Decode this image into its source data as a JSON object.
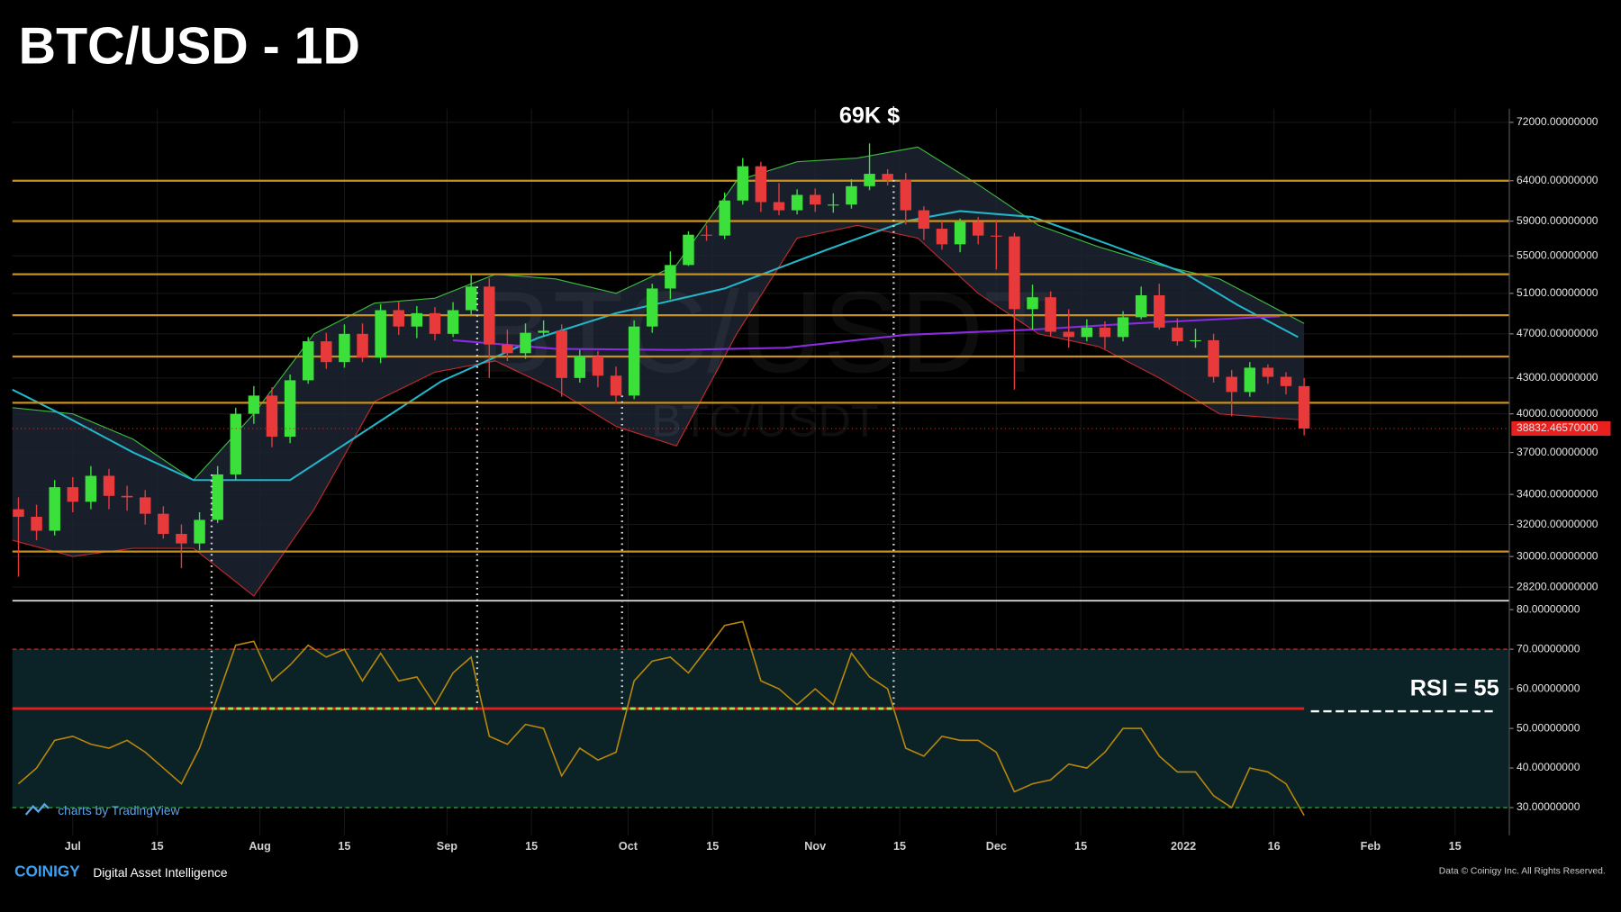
{
  "title": "BTC/USD - 1D",
  "brand": "COINIGY",
  "tagline": "Digital Asset Intelligence",
  "credit": "Data © Coinigy Inc. All Rights Reserved.",
  "tv_credit": "charts by TradingView",
  "watermark": "BTC/USDT",
  "chart_data": [
    {
      "type": "candlestick",
      "annotation": "69K $",
      "log_scale": true,
      "grid": true,
      "xlim": [
        -10,
        238
      ],
      "xticks": [
        {
          "value": 0,
          "label": "Jul"
        },
        {
          "value": 14,
          "label": "15"
        },
        {
          "value": 31,
          "label": "Aug"
        },
        {
          "value": 45,
          "label": "15"
        },
        {
          "value": 62,
          "label": "Sep"
        },
        {
          "value": 76,
          "label": "15"
        },
        {
          "value": 92,
          "label": "Oct"
        },
        {
          "value": 106,
          "label": "15"
        },
        {
          "value": 123,
          "label": "Nov"
        },
        {
          "value": 137,
          "label": "15"
        },
        {
          "value": 153,
          "label": "Dec"
        },
        {
          "value": 167,
          "label": "15"
        },
        {
          "value": 184,
          "label": "2022"
        },
        {
          "value": 199,
          "label": "16"
        },
        {
          "value": 215,
          "label": "Feb"
        },
        {
          "value": 229,
          "label": "15"
        }
      ],
      "ylim": [
        27500,
        74000
      ],
      "yticks": [
        {
          "value": 72000,
          "label": "72000.00000000"
        },
        {
          "value": 64000,
          "label": "64000.00000000"
        },
        {
          "value": 59000,
          "label": "59000.00000000"
        },
        {
          "value": 55000,
          "label": "55000.00000000"
        },
        {
          "value": 51000,
          "label": "51000.00000000"
        },
        {
          "value": 47000,
          "label": "47000.00000000"
        },
        {
          "value": 43000,
          "label": "43000.00000000"
        },
        {
          "value": 40000,
          "label": "40000.00000000"
        },
        {
          "value": 37000,
          "label": "37000.00000000"
        },
        {
          "value": 34000,
          "label": "34000.00000000"
        },
        {
          "value": 32000,
          "label": "32000.00000000"
        },
        {
          "value": 30000,
          "label": "30000.00000000"
        },
        {
          "value": 28200,
          "label": "28200.00000000"
        }
      ],
      "up_color": "#3be03b",
      "down_color": "#e83a3a",
      "x": [
        -9,
        -6,
        -3,
        0,
        3,
        6,
        9,
        12,
        15,
        18,
        21,
        24,
        27,
        30,
        33,
        36,
        39,
        42,
        45,
        48,
        51,
        54,
        57,
        60,
        63,
        66,
        69,
        72,
        75,
        78,
        81,
        84,
        87,
        90,
        93,
        96,
        99,
        102,
        105,
        108,
        111,
        114,
        117,
        120,
        123,
        126,
        129,
        132,
        135,
        138,
        141,
        144,
        147,
        150,
        153,
        156,
        159,
        162,
        165,
        168,
        171,
        174,
        177,
        180,
        183,
        186,
        189,
        192,
        195,
        198,
        201,
        204
      ],
      "open": [
        33000,
        32500,
        31600,
        34500,
        33500,
        35300,
        33900,
        33800,
        32700,
        31400,
        30800,
        32300,
        35400,
        40000,
        41500,
        38200,
        42800,
        46300,
        44400,
        47000,
        44800,
        49300,
        47700,
        49000,
        47000,
        49300,
        51700,
        46000,
        45200,
        47100,
        47300,
        43000,
        44900,
        43200,
        41500,
        47700,
        51500,
        54000,
        57400,
        57300,
        61500,
        65900,
        61300,
        60300,
        62200,
        61000,
        61000,
        63300,
        64900,
        64100,
        60300,
        58100,
        56300,
        58900,
        57300,
        57200,
        49400,
        50600,
        47200,
        46700,
        47600,
        46700,
        48600,
        50800,
        47600,
        46300,
        46400,
        43100,
        41800,
        43900,
        43100,
        42300
      ],
      "high": [
        33800,
        33300,
        35000,
        35200,
        36000,
        35800,
        34600,
        34300,
        33200,
        32000,
        32800,
        36000,
        40500,
        42300,
        42200,
        43300,
        46700,
        47100,
        47900,
        48000,
        49900,
        50200,
        49700,
        49600,
        50100,
        52900,
        52600,
        47400,
        48000,
        48300,
        47900,
        45500,
        45400,
        44000,
        48300,
        52000,
        55500,
        57800,
        58500,
        62500,
        67000,
        66500,
        63700,
        62900,
        63000,
        62400,
        64200,
        69000,
        65500,
        65000,
        60800,
        59000,
        59300,
        59500,
        59000,
        57600,
        51900,
        51200,
        49400,
        48400,
        48200,
        49200,
        51700,
        52000,
        48500,
        47500,
        47000,
        43700,
        44400,
        44200,
        43500,
        43000
      ],
      "low": [
        28800,
        31000,
        31300,
        32800,
        33000,
        33000,
        32900,
        32000,
        31100,
        29300,
        30400,
        32100,
        35000,
        39200,
        37400,
        37700,
        42500,
        43800,
        43900,
        44400,
        44300,
        46900,
        46600,
        46400,
        46700,
        48900,
        43000,
        44500,
        44700,
        46700,
        41400,
        42600,
        42200,
        40800,
        41200,
        47100,
        50400,
        53900,
        56700,
        56900,
        61000,
        60100,
        59700,
        59800,
        60100,
        60000,
        60500,
        62800,
        63400,
        58600,
        56800,
        55700,
        55400,
        56300,
        53500,
        42000,
        47400,
        46800,
        45700,
        46300,
        45600,
        46300,
        48400,
        47400,
        45900,
        45700,
        42600,
        39800,
        41400,
        42500,
        41600,
        38300
      ],
      "close": [
        32500,
        31600,
        34500,
        33500,
        35300,
        33900,
        33800,
        32700,
        31400,
        30800,
        32300,
        35400,
        40000,
        41500,
        38200,
        42800,
        46300,
        44400,
        47000,
        44800,
        49300,
        47700,
        49000,
        47000,
        49300,
        51700,
        46000,
        45200,
        47100,
        47300,
        43000,
        44900,
        43200,
        41500,
        47700,
        51500,
        54000,
        57400,
        57300,
        61500,
        65900,
        61300,
        60300,
        62200,
        61000,
        61000,
        63300,
        64900,
        64100,
        60300,
        58100,
        56300,
        58900,
        57300,
        57200,
        49400,
        50600,
        47200,
        46700,
        47600,
        46700,
        48600,
        50800,
        47600,
        46300,
        46400,
        43100,
        41800,
        43900,
        43100,
        42300,
        38832
      ],
      "last_price": {
        "value": 38832.4657,
        "label": "38832.46570000"
      },
      "last_price_color": "#e8201e",
      "levels": [
        64000,
        59000,
        53000,
        48800,
        44900,
        40900,
        30300
      ],
      "level_color": "#c8901e",
      "bands": {
        "x": [
          -10,
          0,
          10,
          20,
          30,
          40,
          50,
          60,
          70,
          80,
          90,
          100,
          110,
          120,
          130,
          140,
          150,
          160,
          170,
          180,
          190,
          204
        ],
        "upper": [
          40500,
          40000,
          38000,
          35000,
          40000,
          47000,
          50000,
          50500,
          53000,
          52500,
          51000,
          54000,
          64000,
          66500,
          67000,
          68500,
          63500,
          58500,
          56000,
          54000,
          52500,
          48000
        ],
        "lower": [
          31000,
          30000,
          30500,
          30500,
          27700,
          33000,
          41000,
          43500,
          44500,
          42000,
          39000,
          37500,
          47000,
          57000,
          58500,
          57000,
          51000,
          47000,
          45800,
          43000,
          40000,
          39500
        ],
        "upper_color": "#3fb83f",
        "lower_color": "#c0282c",
        "fill": "#1c2433"
      },
      "lines": [
        {
          "color": "#23b5c8",
          "x": [
            -10,
            -2,
            10,
            20,
            36,
            48,
            61,
            77,
            90,
            108,
            125,
            138,
            147,
            159,
            172,
            184,
            193,
            203
          ],
          "values": [
            42000,
            40000,
            37000,
            35000,
            35000,
            38500,
            42700,
            46600,
            49000,
            51500,
            55700,
            59000,
            60200,
            59500,
            56200,
            53200,
            49800,
            46700
          ]
        },
        {
          "color": "#8a2be2",
          "x": [
            63,
            80,
            100,
            118,
            138,
            159,
            176,
            193,
            200
          ],
          "values": [
            46400,
            45600,
            45500,
            45700,
            46900,
            47400,
            48000,
            48500,
            48700
          ]
        }
      ],
      "markers": [
        23,
        67,
        91,
        136
      ]
    },
    {
      "type": "line",
      "annotation": "RSI = 55",
      "color": "#b8860b",
      "ylim": [
        23,
        82
      ],
      "yticks": [
        {
          "value": 80,
          "label": "80.00000000"
        },
        {
          "value": 70,
          "label": "70.00000000"
        },
        {
          "value": 60,
          "label": "60.00000000"
        },
        {
          "value": 50,
          "label": "50.00000000"
        },
        {
          "value": 40,
          "label": "40.00000000"
        },
        {
          "value": 30,
          "label": "30.00000000"
        }
      ],
      "threshold": 55,
      "threshold_color": "#e02020",
      "active_color": "#a6e34f",
      "upper_band": 70,
      "upper_band_color": "#e02020",
      "lower_band": 30,
      "lower_band_color": "#2ec02e",
      "band_fill": "#0b2326",
      "x": [
        -9,
        -6,
        -3,
        0,
        3,
        6,
        9,
        12,
        15,
        18,
        21,
        24,
        27,
        30,
        33,
        36,
        39,
        42,
        45,
        48,
        51,
        54,
        57,
        60,
        63,
        66,
        69,
        72,
        75,
        78,
        81,
        84,
        87,
        90,
        93,
        96,
        99,
        102,
        105,
        108,
        111,
        114,
        117,
        120,
        123,
        126,
        129,
        132,
        135,
        138,
        141,
        144,
        147,
        150,
        153,
        156,
        159,
        162,
        165,
        168,
        171,
        174,
        177,
        180,
        183,
        186,
        189,
        192,
        195,
        198,
        201,
        204
      ],
      "values": [
        36,
        40,
        47,
        48,
        46,
        45,
        47,
        44,
        40,
        36,
        45,
        58,
        71,
        72,
        62,
        66,
        71,
        68,
        70,
        62,
        69,
        62,
        63,
        56,
        64,
        68,
        48,
        46,
        51,
        50,
        38,
        45,
        42,
        44,
        62,
        67,
        68,
        64,
        70,
        76,
        77,
        62,
        60,
        56,
        60,
        56,
        69,
        63,
        60,
        45,
        43,
        48,
        47,
        47,
        44,
        34,
        36,
        37,
        41,
        40,
        44,
        50,
        50,
        43,
        39,
        39,
        33,
        30,
        40,
        39,
        36,
        28
      ]
    }
  ]
}
